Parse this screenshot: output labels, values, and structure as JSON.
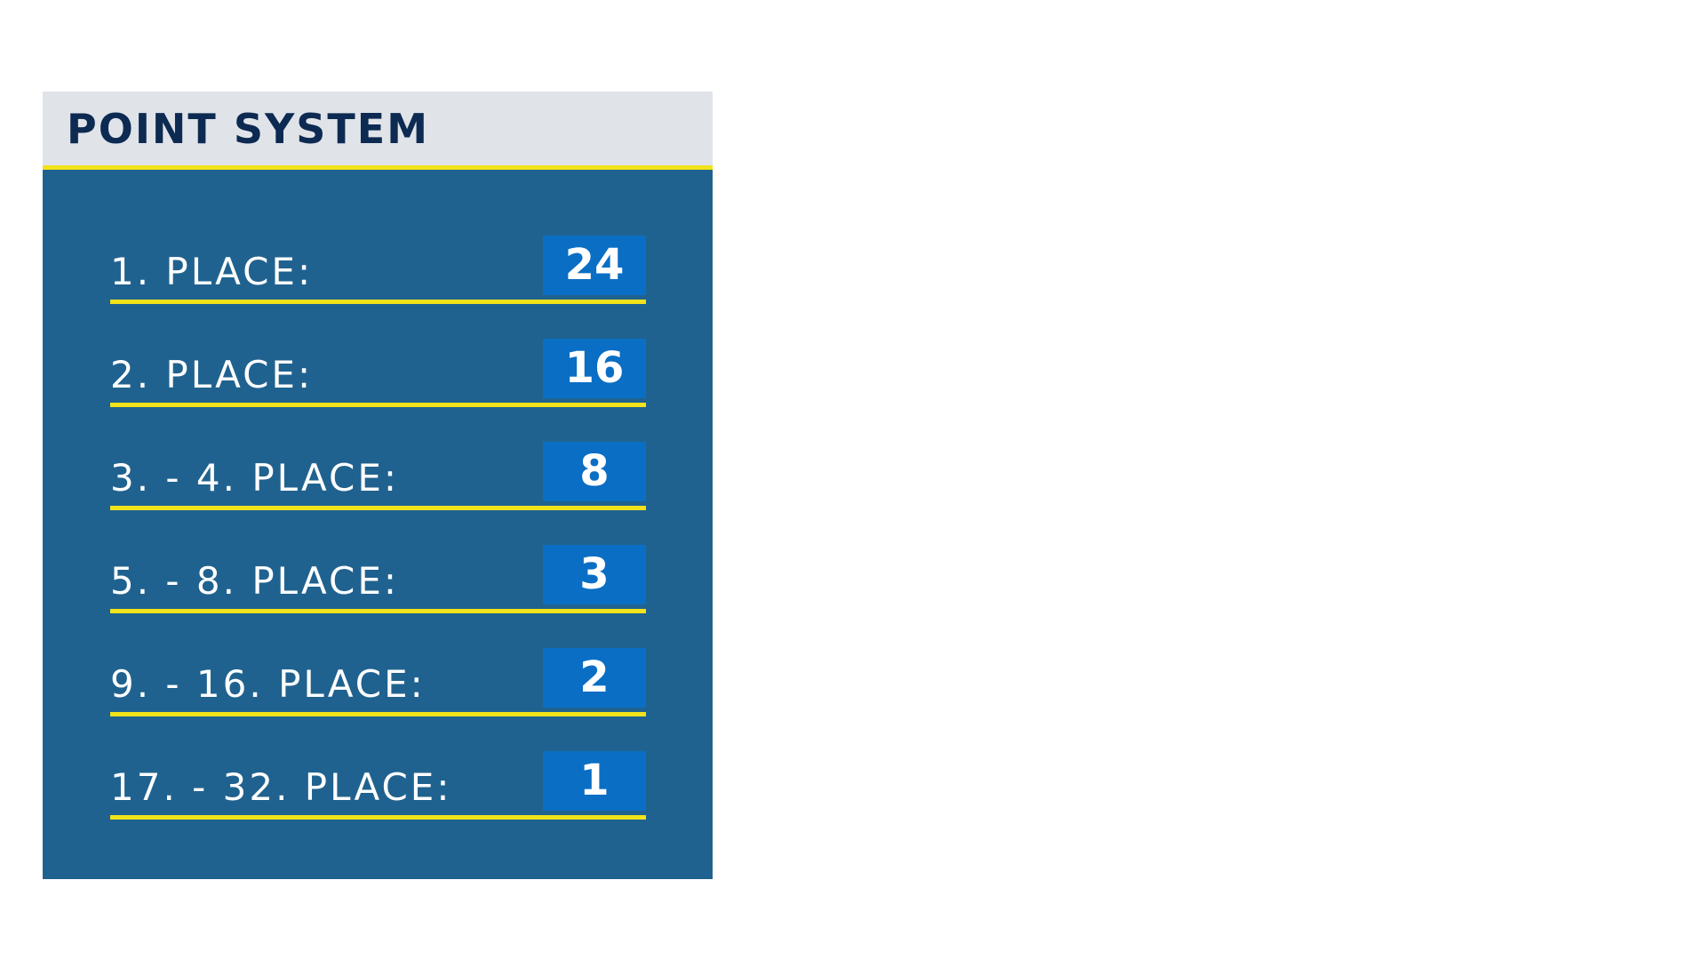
{
  "header": {
    "title": "POINT SYSTEM"
  },
  "rows": [
    {
      "label": "1. PLACE:",
      "points": "24"
    },
    {
      "label": "2. PLACE:",
      "points": "16"
    },
    {
      "label": "3. - 4. PLACE:",
      "points": "8"
    },
    {
      "label": "5. - 8. PLACE:",
      "points": "3"
    },
    {
      "label": "9. - 16. PLACE:",
      "points": "2"
    },
    {
      "label": "17. - 32. PLACE:",
      "points": "1"
    }
  ]
}
